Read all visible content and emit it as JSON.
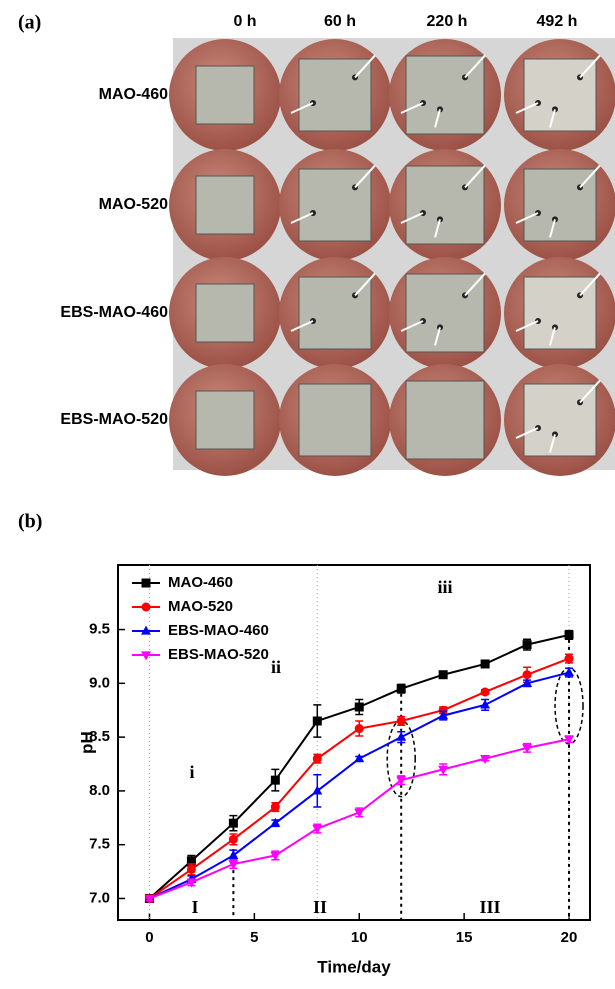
{
  "panel_a": {
    "label": "(a)",
    "columns": [
      "0 h",
      "60 h",
      "220 h",
      "492 h"
    ],
    "rows": [
      "MAO-460",
      "MAO-520",
      "EBS-MAO-460",
      "EBS-MAO-520"
    ]
  },
  "chart_data": {
    "type": "line",
    "panel_label": "(b)",
    "xlabel": "Time/day",
    "ylabel": "pH",
    "x": [
      0,
      2,
      4,
      6,
      8,
      10,
      12,
      14,
      16,
      18,
      20
    ],
    "series": [
      {
        "name": "MAO-460",
        "color": "#000000",
        "marker": "square",
        "values": [
          7.0,
          7.35,
          7.7,
          8.1,
          8.65,
          8.78,
          8.95,
          9.08,
          9.18,
          9.36,
          9.45
        ],
        "errors": [
          0.03,
          0.05,
          0.07,
          0.1,
          0.15,
          0.07,
          0.04,
          0.02,
          0.02,
          0.05,
          0.04
        ]
      },
      {
        "name": "MAO-520",
        "color": "#ff0000",
        "marker": "circle",
        "values": [
          7.0,
          7.27,
          7.55,
          7.85,
          8.3,
          8.58,
          8.65,
          8.75,
          8.92,
          9.08,
          9.23
        ],
        "errors": [
          0.03,
          0.05,
          0.05,
          0.04,
          0.04,
          0.07,
          0.04,
          0.03,
          0.02,
          0.07,
          0.04
        ]
      },
      {
        "name": "EBS-MAO-460",
        "color": "#0000ff",
        "marker": "triangle-up",
        "values": [
          7.0,
          7.18,
          7.4,
          7.7,
          8.0,
          8.3,
          8.5,
          8.7,
          8.8,
          9.0,
          9.1
        ],
        "errors": [
          0.02,
          0.03,
          0.05,
          0.03,
          0.15,
          0.02,
          0.05,
          0.04,
          0.05,
          0.03,
          0.04
        ]
      },
      {
        "name": "EBS-MAO-520",
        "color": "#ff00ff",
        "marker": "triangle-down",
        "values": [
          7.0,
          7.15,
          7.32,
          7.4,
          7.65,
          7.8,
          8.1,
          8.2,
          8.3,
          8.4,
          8.48
        ],
        "errors": [
          0.02,
          0.03,
          0.04,
          0.04,
          0.04,
          0.04,
          0.04,
          0.05,
          0.02,
          0.04,
          0.03
        ]
      }
    ],
    "annotations": [
      "i",
      "ii",
      "iii",
      "I",
      "II",
      "III"
    ],
    "xlim": [
      -1.5,
      21
    ],
    "ylim": [
      6.8,
      10.1
    ],
    "xticks": [
      0,
      5,
      10,
      15,
      20
    ],
    "yticks": [
      {
        "value": 7.0,
        "label": "7.0"
      },
      7.5,
      {
        "value": 8.0,
        "label": "8.0"
      },
      8.5,
      {
        "value": 9.0,
        "label": "9.0"
      },
      9.5
    ],
    "legend": "upper-left"
  }
}
